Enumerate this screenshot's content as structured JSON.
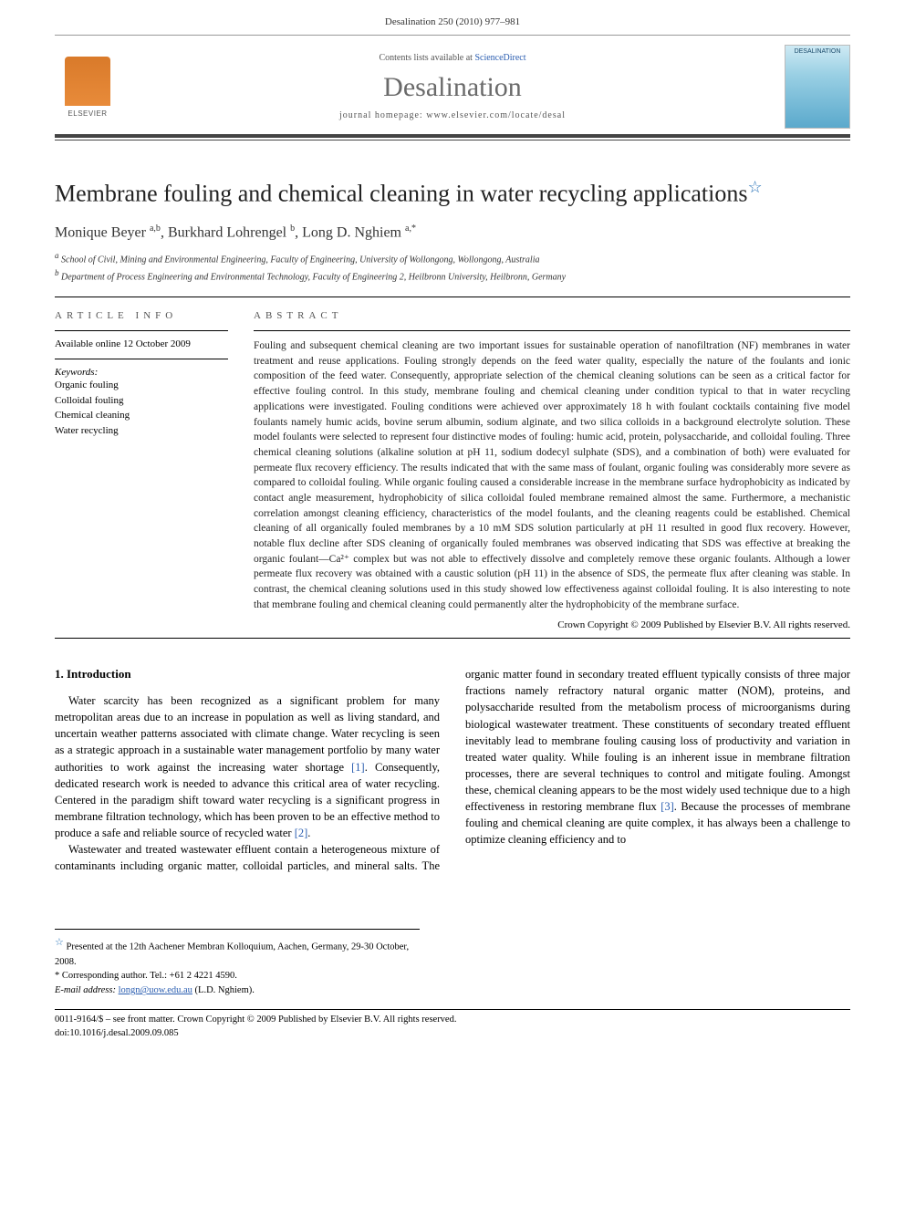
{
  "running_head": "Desalination 250 (2010) 977–981",
  "masthead": {
    "contents_prefix": "Contents lists available at ",
    "contents_link": "ScienceDirect",
    "journal": "Desalination",
    "homepage_prefix": "journal homepage: ",
    "homepage_url": "www.elsevier.com/locate/desal",
    "publisher_name": "ELSEVIER",
    "cover_label": "DESALINATION"
  },
  "article": {
    "title": "Membrane fouling and chemical cleaning in water recycling applications",
    "authors_html": "Monique Beyer <span class='sup'>a,b</span>, Burkhard Lohrengel <span class='sup'>b</span>, Long D. Nghiem <span class='sup'>a,*</span>",
    "affiliations": {
      "a": "School of Civil, Mining and Environmental Engineering, Faculty of Engineering, University of Wollongong, Wollongong, Australia",
      "b": "Department of Process Engineering and Environmental Technology, Faculty of Engineering 2, Heilbronn University, Heilbronn, Germany"
    }
  },
  "info": {
    "heading": "ARTICLE INFO",
    "available": "Available online 12 October 2009",
    "keywords_label": "Keywords:",
    "keywords": [
      "Organic fouling",
      "Colloidal fouling",
      "Chemical cleaning",
      "Water recycling"
    ]
  },
  "abstract": {
    "heading": "ABSTRACT",
    "body": "Fouling and subsequent chemical cleaning are two important issues for sustainable operation of nanofiltration (NF) membranes in water treatment and reuse applications. Fouling strongly depends on the feed water quality, especially the nature of the foulants and ionic composition of the feed water. Consequently, appropriate selection of the chemical cleaning solutions can be seen as a critical factor for effective fouling control. In this study, membrane fouling and chemical cleaning under condition typical to that in water recycling applications were investigated. Fouling conditions were achieved over approximately 18 h with foulant cocktails containing five model foulants namely humic acids, bovine serum albumin, sodium alginate, and two silica colloids in a background electrolyte solution. These model foulants were selected to represent four distinctive modes of fouling: humic acid, protein, polysaccharide, and colloidal fouling. Three chemical cleaning solutions (alkaline solution at pH 11, sodium dodecyl sulphate (SDS), and a combination of both) were evaluated for permeate flux recovery efficiency. The results indicated that with the same mass of foulant, organic fouling was considerably more severe as compared to colloidal fouling. While organic fouling caused a considerable increase in the membrane surface hydrophobicity as indicated by contact angle measurement, hydrophobicity of silica colloidal fouled membrane remained almost the same. Furthermore, a mechanistic correlation amongst cleaning efficiency, characteristics of the model foulants, and the cleaning reagents could be established. Chemical cleaning of all organically fouled membranes by a 10 mM SDS solution particularly at pH 11 resulted in good flux recovery. However, notable flux decline after SDS cleaning of organically fouled membranes was observed indicating that SDS was effective at breaking the organic foulant—Ca²⁺ complex but was not able to effectively dissolve and completely remove these organic foulants. Although a lower permeate flux recovery was obtained with a caustic solution (pH 11) in the absence of SDS, the permeate flux after cleaning was stable. In contrast, the chemical cleaning solutions used in this study showed low effectiveness against colloidal fouling. It is also interesting to note that membrane fouling and chemical cleaning could permanently alter the hydrophobicity of the membrane surface.",
    "copyright": "Crown Copyright © 2009 Published by Elsevier B.V. All rights reserved."
  },
  "body": {
    "section1_title": "1. Introduction",
    "p1": "Water scarcity has been recognized as a significant problem for many metropolitan areas due to an increase in population as well as living standard, and uncertain weather patterns associated with climate change. Water recycling is seen as a strategic approach in a sustainable water management portfolio by many water authorities to work against the increasing water shortage ",
    "p1_ref": "[1]",
    "p1_cont": ". Consequently, dedicated research work is needed to advance this critical area of water recycling. Centered in the paradigm shift toward water recycling is a significant progress in membrane filtration technology,",
    "p2a": "which has been proven to be an effective method to produce a safe and reliable source of recycled water ",
    "p2a_ref": "[2]",
    "p2a_end": ".",
    "p2": "Wastewater and treated wastewater effluent contain a heterogeneous mixture of contaminants including organic matter, colloidal particles, and mineral salts. The organic matter found in secondary treated effluent typically consists of three major fractions namely refractory natural organic matter (NOM), proteins, and polysaccharide resulted from the metabolism process of microorganisms during biological wastewater treatment. These constituents of secondary treated effluent inevitably lead to membrane fouling causing loss of productivity and variation in treated water quality. While fouling is an inherent issue in membrane filtration processes, there are several techniques to control and mitigate fouling. Amongst these, chemical cleaning appears to be the most widely used technique due to a high effectiveness in restoring membrane flux ",
    "p2_ref": "[3]",
    "p2_cont": ". Because the processes of membrane fouling and chemical cleaning are quite complex, it has always been a challenge to optimize cleaning efficiency and to"
  },
  "footnotes": {
    "conference": "Presented at the 12th Aachener Membran Kolloquium, Aachen, Germany, 29-30 October, 2008.",
    "corresponding": "Corresponding author. Tel.: +61 2 4221 4590.",
    "email_label": "E-mail address: ",
    "email": "longn@uow.edu.au",
    "email_suffix": " (L.D. Nghiem)."
  },
  "footer": {
    "line1": "0011-9164/$ – see front matter. Crown Copyright © 2009 Published by Elsevier B.V. All rights reserved.",
    "doi": "doi:10.1016/j.desal.2009.09.085"
  },
  "colors": {
    "link": "#2a5db0",
    "rule": "#000000",
    "heading_gray": "#555555",
    "elsevier_orange": "#e07b2a"
  }
}
